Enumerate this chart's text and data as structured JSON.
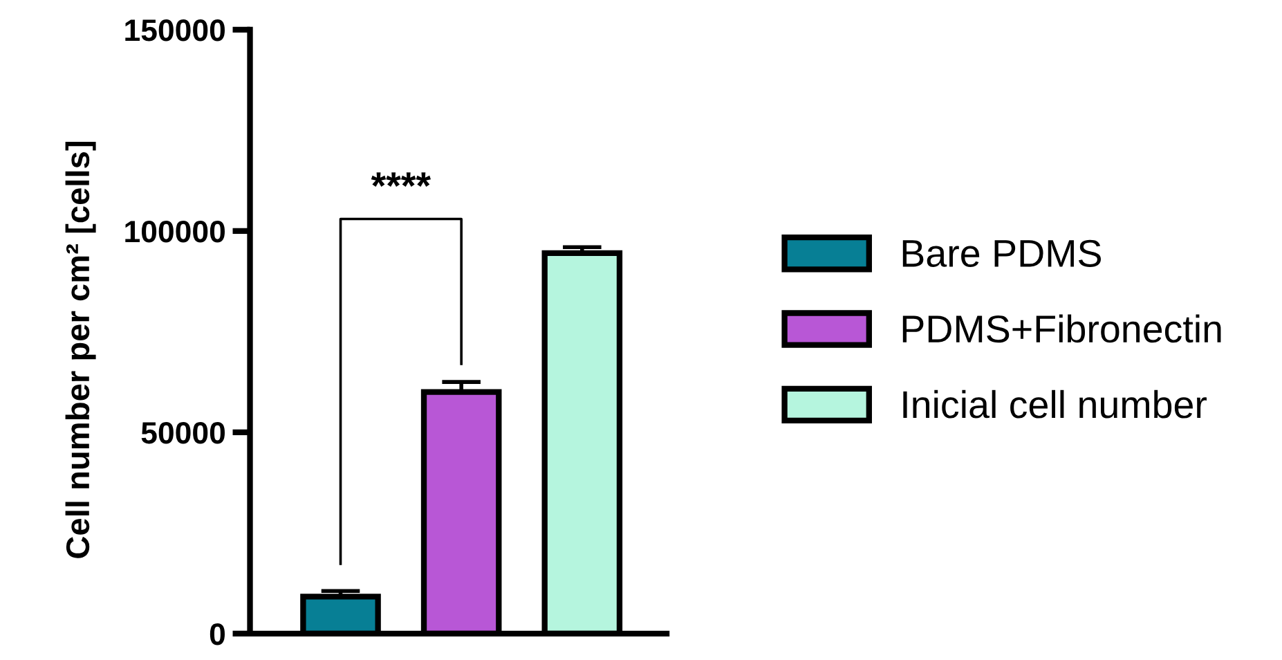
{
  "chart_data": {
    "type": "bar",
    "ylabel": "Cell number per cm² [cells]",
    "categories": [
      null,
      null,
      null
    ],
    "series": [
      {
        "name": "Bare PDMS",
        "color": "#077f95",
        "values": [
          9200,
          null,
          null
        ],
        "errors": [
          1400,
          null,
          null
        ]
      },
      {
        "name": "PDMS+Fibronectin",
        "color": "#b857d6",
        "values": [
          null,
          60000,
          null
        ],
        "errors": [
          null,
          2500,
          null
        ]
      },
      {
        "name": "Inicial cell number",
        "color": "#b5f5de",
        "values": [
          null,
          null,
          94500
        ],
        "errors": [
          null,
          null,
          1500
        ]
      }
    ],
    "ylim": [
      0,
      150000
    ],
    "yticks": [
      0,
      50000,
      100000,
      150000
    ],
    "grid": false,
    "legend": "right",
    "annotations": [
      "****"
    ]
  }
}
